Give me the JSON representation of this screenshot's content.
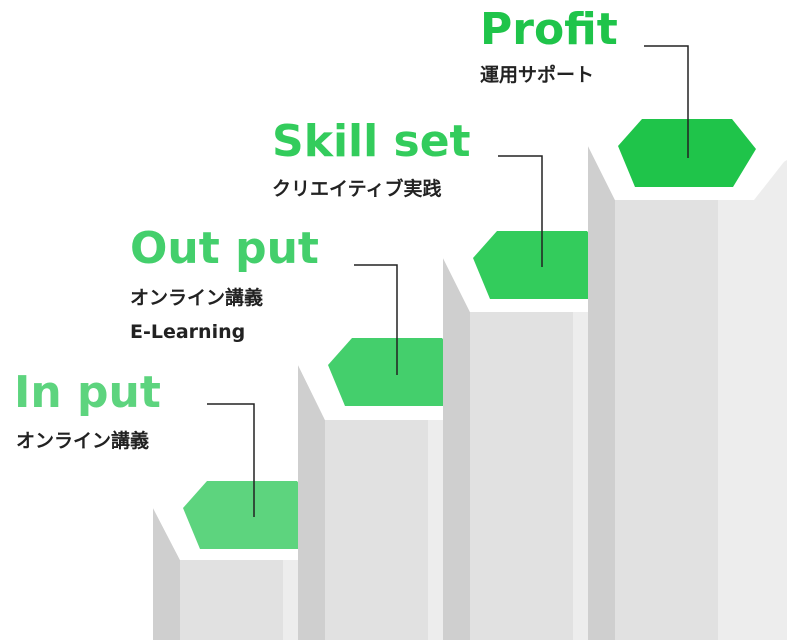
{
  "steps": [
    {
      "title": "In put",
      "lines": [
        "オンライン講義"
      ],
      "color": "#5dd47e"
    },
    {
      "title": "Out put",
      "lines": [
        "オンライン講義",
        "E-Learning"
      ],
      "color": "#44cf6c"
    },
    {
      "title": "Skill set",
      "lines": [
        "クリエイティブ実践"
      ],
      "color": "#33cc5c"
    },
    {
      "title": "Profit",
      "lines": [
        "運用サポート"
      ],
      "color": "#1fc44a"
    }
  ],
  "colors": {
    "hexagon_border": "#ffffff",
    "pillar_left": "#cfcfcf",
    "pillar_front": "#e1e1e1",
    "pillar_right": "#ededed",
    "leader_line": "#222222"
  }
}
